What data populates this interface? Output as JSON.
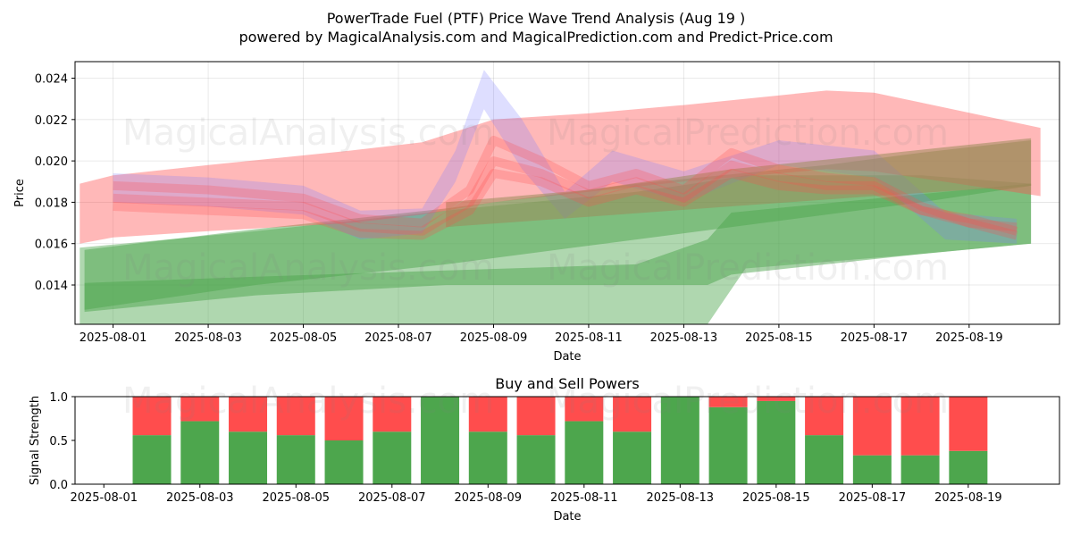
{
  "title_line1": "PowerTrade Fuel (PTF) Price Wave Trend Analysis (Aug 19 )",
  "title_line2": "powered by MagicalAnalysis.com and MagicalPrediction.com and Predict-Price.com",
  "watermarks": [
    "MagicalAnalysis.com",
    "MagicalPrediction.com"
  ],
  "colors": {
    "red": "#ff4d4d",
    "green": "#4da64d",
    "blue": "#7b7bff",
    "brown": "#9a8a5a"
  },
  "chart_data": [
    {
      "type": "area",
      "title": "",
      "xlabel": "Date",
      "ylabel": "Price",
      "x_ticks": [
        "2025-08-01",
        "2025-08-03",
        "2025-08-05",
        "2025-08-07",
        "2025-08-09",
        "2025-08-11",
        "2025-08-13",
        "2025-08-15",
        "2025-08-17",
        "2025-08-19"
      ],
      "y_ticks": [
        "0.014",
        "0.016",
        "0.018",
        "0.020",
        "0.022",
        "0.024"
      ],
      "xlim_days": [
        -0.8,
        19.9
      ],
      "ylim": [
        0.0121,
        0.0248
      ],
      "grid": true,
      "series": [
        {
          "name": "green-wide-lower",
          "color": "green",
          "alpha": 0.45,
          "x": [
            -0.7,
            3,
            7,
            11,
            12.5,
            13.3,
            17,
            19.3
          ],
          "upper": [
            0.0158,
            0.0166,
            0.0176,
            0.0185,
            0.019,
            0.0193,
            0.0193,
            0.0189
          ],
          "lower": [
            0.012,
            0.012,
            0.012,
            0.012,
            0.0121,
            0.0148,
            0.0155,
            0.016
          ]
        },
        {
          "name": "green-lower",
          "color": "green",
          "alpha": 0.5,
          "x": [
            -0.6,
            3,
            7,
            11,
            12.5,
            13,
            17,
            19.3
          ],
          "upper": [
            0.0141,
            0.0144,
            0.0147,
            0.015,
            0.0162,
            0.0175,
            0.0184,
            0.0189
          ],
          "lower": [
            0.0127,
            0.0135,
            0.014,
            0.014,
            0.014,
            0.0145,
            0.0155,
            0.016
          ]
        },
        {
          "name": "green-upper",
          "color": "green",
          "alpha": 0.5,
          "x": [
            -0.6,
            3,
            7,
            11,
            15,
            17,
            19.3
          ],
          "upper": [
            0.0157,
            0.0167,
            0.0177,
            0.0189,
            0.0198,
            0.0204,
            0.021
          ],
          "lower": [
            0.0128,
            0.014,
            0.015,
            0.0162,
            0.0174,
            0.018,
            0.0188
          ]
        },
        {
          "name": "red-envelope",
          "color": "red",
          "alpha": 0.4,
          "x": [
            -0.7,
            0,
            2,
            5,
            6.5,
            8,
            10,
            12,
            15,
            16,
            19.5
          ],
          "upper": [
            0.0189,
            0.0193,
            0.0198,
            0.0205,
            0.0209,
            0.022,
            0.0223,
            0.0227,
            0.0234,
            0.0233,
            0.0216
          ],
          "lower": [
            0.016,
            0.0163,
            0.0166,
            0.017,
            0.0174,
            0.018,
            0.0185,
            0.019,
            0.0196,
            0.0195,
            0.0183
          ]
        },
        {
          "name": "blue-spike",
          "color": "blue",
          "alpha": 0.25,
          "x": [
            0,
            2,
            4,
            5.2,
            6.5,
            7.2,
            7.8,
            8.6,
            9.5,
            10.5,
            12,
            14,
            16,
            17.5,
            19
          ],
          "upper": [
            0.0194,
            0.0192,
            0.0188,
            0.0176,
            0.0177,
            0.0205,
            0.0244,
            0.022,
            0.0185,
            0.0205,
            0.0195,
            0.021,
            0.0205,
            0.0175,
            0.0172
          ],
          "lower": [
            0.018,
            0.0178,
            0.0174,
            0.0162,
            0.0165,
            0.019,
            0.0225,
            0.0196,
            0.0172,
            0.019,
            0.018,
            0.0198,
            0.0192,
            0.0162,
            0.016
          ]
        },
        {
          "name": "brown-band",
          "color": "brown",
          "alpha": 0.55,
          "x": [
            7,
            10,
            13,
            16,
            19.3
          ],
          "upper": [
            0.018,
            0.0186,
            0.0196,
            0.0203,
            0.0211
          ],
          "lower": [
            0.0168,
            0.0173,
            0.0178,
            0.0183,
            0.0188
          ]
        }
      ],
      "lines": [
        {
          "color": "red",
          "alpha": 0.25,
          "x": [
            0,
            2,
            4,
            5.2,
            6.5,
            7.5,
            8,
            9,
            10,
            11,
            12,
            13,
            14,
            15,
            16,
            17,
            18,
            19
          ],
          "y": [
            0.0188,
            0.0186,
            0.0182,
            0.0172,
            0.017,
            0.0186,
            0.021,
            0.02,
            0.0188,
            0.0194,
            0.0186,
            0.0204,
            0.0196,
            0.0192,
            0.019,
            0.0178,
            0.017,
            0.0168
          ]
        },
        {
          "color": "red",
          "alpha": 0.25,
          "x": [
            0,
            2,
            4,
            5.2,
            6.5,
            7.5,
            8,
            9,
            10,
            11,
            12,
            13,
            14,
            15,
            16,
            17,
            18,
            19
          ],
          "y": [
            0.0182,
            0.018,
            0.0178,
            0.0168,
            0.0166,
            0.018,
            0.02,
            0.0194,
            0.0184,
            0.019,
            0.0182,
            0.0198,
            0.0192,
            0.0188,
            0.0188,
            0.0176,
            0.0172,
            0.0166
          ]
        },
        {
          "color": "red",
          "alpha": 0.25,
          "x": [
            0,
            2,
            4,
            5.2,
            6.5,
            7.5,
            8,
            9,
            10,
            11,
            12,
            13,
            14,
            15,
            16,
            17,
            18,
            19
          ],
          "y": [
            0.0178,
            0.0176,
            0.0174,
            0.0165,
            0.0164,
            0.0176,
            0.0194,
            0.019,
            0.018,
            0.0186,
            0.018,
            0.0194,
            0.0188,
            0.0186,
            0.0186,
            0.0176,
            0.017,
            0.0164
          ]
        }
      ]
    },
    {
      "type": "bar",
      "title": "Buy and Sell Powers",
      "xlabel": "Date",
      "ylabel": "Signal Strength",
      "x_ticks": [
        "2025-08-01",
        "2025-08-03",
        "2025-08-05",
        "2025-08-07",
        "2025-08-09",
        "2025-08-11",
        "2025-08-13",
        "2025-08-15",
        "2025-08-17",
        "2025-08-19"
      ],
      "y_ticks": [
        "0.0",
        "0.5",
        "1.0"
      ],
      "xlim_days": [
        -0.6,
        19.9
      ],
      "ylim": [
        0,
        1
      ],
      "x_days": [
        1,
        2,
        3,
        4,
        5,
        6,
        7,
        8,
        9,
        10,
        11,
        12,
        13,
        14,
        15,
        16,
        17,
        18
      ],
      "series": [
        {
          "name": "Buy",
          "color": "green",
          "values": [
            0.56,
            0.72,
            0.6,
            0.56,
            0.5,
            0.6,
            1.0,
            0.6,
            0.56,
            0.72,
            0.6,
            1.0,
            0.88,
            0.95,
            0.56,
            0.33,
            0.33,
            0.38
          ]
        },
        {
          "name": "Sell",
          "color": "red",
          "values": [
            0.44,
            0.28,
            0.4,
            0.44,
            0.5,
            0.4,
            0.0,
            0.4,
            0.44,
            0.28,
            0.4,
            0.0,
            0.12,
            0.05,
            0.44,
            0.67,
            0.67,
            0.62
          ]
        }
      ]
    }
  ]
}
